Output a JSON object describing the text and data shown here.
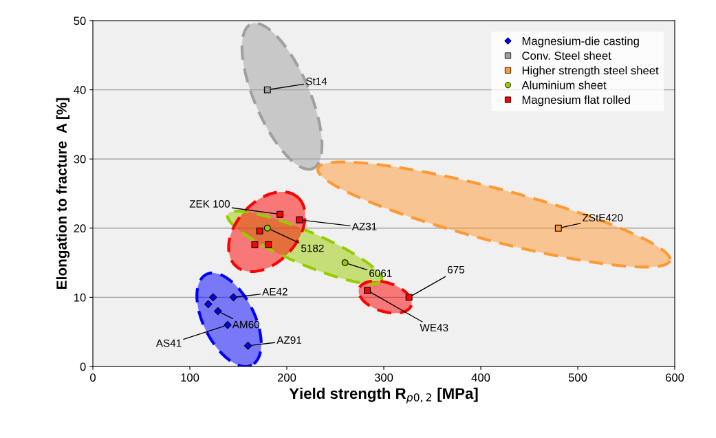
{
  "chart_data": {
    "type": "scatter",
    "xlabel": "Yield strength R$_{p0,2}$ [MPa]",
    "ylabel": "Elongation to fracture  A [%]",
    "xlim": [
      0,
      600
    ],
    "ylim": [
      0,
      50
    ],
    "xticks": [
      0,
      100,
      200,
      300,
      400,
      500,
      600
    ],
    "yticks": [
      0,
      10,
      20,
      30,
      40,
      50
    ],
    "grid": "y",
    "legend": "top right",
    "series": [
      {
        "name": "Magnesium-die casting",
        "color": "#0000ff",
        "marker": "diamond",
        "x": [
          124,
          145,
          119,
          129,
          139,
          160
        ],
        "values": [
          10,
          10,
          9,
          8,
          6,
          3
        ]
      },
      {
        "name": "Conv. Steel sheet",
        "color": "#a0a0a0",
        "marker": "square",
        "x": [
          180
        ],
        "values": [
          40
        ]
      },
      {
        "name": "Higher strength steel sheet",
        "color": "#ff9933",
        "marker": "square",
        "x": [
          480
        ],
        "values": [
          20
        ]
      },
      {
        "name": "Aluminium sheet",
        "color": "#99cc00",
        "marker": "circle",
        "x": [
          180,
          260
        ],
        "values": [
          20,
          15
        ]
      },
      {
        "name": "Magnesium flat rolled",
        "color": "#ff0000",
        "marker": "square",
        "x": [
          193,
          213,
          172,
          167,
          181,
          283,
          326
        ],
        "values": [
          22,
          21.2,
          19.6,
          17.6,
          17.6,
          11,
          10
        ]
      }
    ],
    "annotations": [
      {
        "text": "St14",
        "x": 180,
        "y": 40
      },
      {
        "text": "ZStE420",
        "x": 480,
        "y": 20
      },
      {
        "text": "ZEK 100",
        "x": 193,
        "y": 22
      },
      {
        "text": "AZ31",
        "x": 213,
        "y": 21.2
      },
      {
        "text": "5182",
        "x": 180,
        "y": 20
      },
      {
        "text": "6061",
        "x": 260,
        "y": 15
      },
      {
        "text": "675",
        "x": 326,
        "y": 10
      },
      {
        "text": "WE43",
        "x": 283,
        "y": 11
      },
      {
        "text": "AE42",
        "x": 145,
        "y": 10
      },
      {
        "text": "AM60",
        "x": 129,
        "y": 8
      },
      {
        "text": "AS41",
        "x": 139,
        "y": 6
      },
      {
        "text": "AZ91",
        "x": 160,
        "y": 3
      }
    ]
  }
}
